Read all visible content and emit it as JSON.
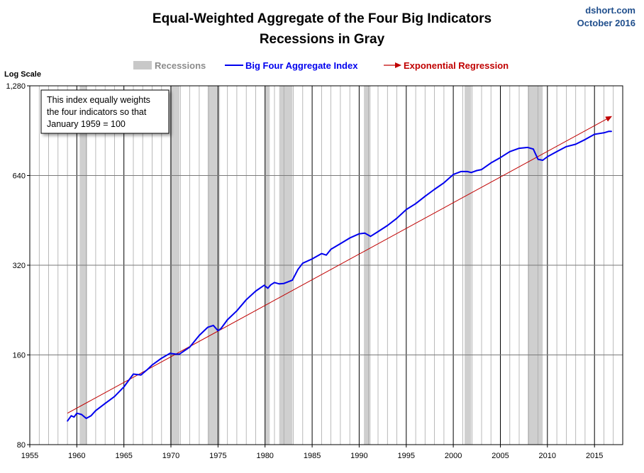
{
  "chart_data": {
    "type": "line",
    "title": "Equal-Weighted Aggregate of the Four Big Indicators",
    "subtitle": "Recessions in Gray",
    "source_label": "dshort.com",
    "date_label": "October 2016",
    "y_scale_label": "Log Scale",
    "y_scale": "log",
    "ylim": [
      80,
      1280
    ],
    "y_ticks": [
      80,
      160,
      320,
      640,
      1280
    ],
    "y_tick_labels": [
      "80",
      "160",
      "320",
      "640",
      "1,280"
    ],
    "xlim": [
      1955,
      2018
    ],
    "x_ticks": [
      1955,
      1960,
      1965,
      1970,
      1975,
      1980,
      1985,
      1990,
      1995,
      2000,
      2005,
      2010,
      2015
    ],
    "x_tick_labels": [
      "1955",
      "1960",
      "1965",
      "1970",
      "1975",
      "1980",
      "1985",
      "1990",
      "1995",
      "2000",
      "2005",
      "2010",
      "2015"
    ],
    "grid": "vertical lines every year; horizontal lines at y ticks",
    "legend": {
      "placement": "top-center",
      "entries": [
        {
          "label": "Recessions",
          "kind": "band",
          "color": "#c8c8c8"
        },
        {
          "label": "Big Four Aggregate Index",
          "kind": "line",
          "color": "#0000ee"
        },
        {
          "label": "Exponential Regression",
          "kind": "arrow",
          "color": "#c00000"
        }
      ]
    },
    "annotation": [
      "This index equally weights",
      "the four indicators  so that",
      "January 1959 = 100"
    ],
    "recessions": [
      [
        1960.3,
        1961.1
      ],
      [
        1969.9,
        1970.9
      ],
      [
        1973.9,
        1975.2
      ],
      [
        1980.0,
        1980.5
      ],
      [
        1981.5,
        1982.9
      ],
      [
        1990.5,
        1991.2
      ],
      [
        2001.2,
        2001.9
      ],
      [
        2007.9,
        2009.5
      ]
    ],
    "series": [
      {
        "name": "Big Four Aggregate Index",
        "color": "#0000ee",
        "x": [
          1959.0,
          1959.4,
          1959.7,
          1960.0,
          1960.5,
          1961.0,
          1961.5,
          1962.0,
          1963.0,
          1964.0,
          1965.0,
          1966.0,
          1966.8,
          1967.5,
          1968.0,
          1969.0,
          1969.9,
          1970.5,
          1970.9,
          1972.0,
          1973.0,
          1973.9,
          1974.5,
          1975.0,
          1975.3,
          1976.0,
          1977.0,
          1978.0,
          1979.0,
          1979.9,
          1980.3,
          1980.6,
          1981.0,
          1981.5,
          1982.0,
          1982.9,
          1983.5,
          1984.0,
          1985.0,
          1986.0,
          1986.5,
          1987.0,
          1988.0,
          1989.0,
          1990.0,
          1990.6,
          1991.2,
          1992.0,
          1993.0,
          1994.0,
          1995.0,
          1996.0,
          1997.0,
          1998.0,
          1999.0,
          2000.0,
          2000.8,
          2001.5,
          2001.9,
          2002.5,
          2003.0,
          2004.0,
          2005.0,
          2006.0,
          2007.0,
          2007.9,
          2008.5,
          2009.0,
          2009.5,
          2010.0,
          2011.0,
          2012.0,
          2013.0,
          2014.0,
          2015.0,
          2015.5,
          2016.0,
          2016.5,
          2016.8
        ],
        "values": [
          96,
          100,
          99,
          102,
          101,
          98,
          100,
          104,
          110,
          116,
          125,
          138,
          137,
          143,
          148,
          156,
          162,
          161,
          161,
          170,
          186,
          198,
          201,
          193,
          196,
          210,
          225,
          245,
          262,
          274,
          268,
          275,
          280,
          277,
          278,
          285,
          310,
          325,
          336,
          350,
          346,
          362,
          378,
          395,
          408,
          410,
          400,
          415,
          435,
          460,
          492,
          515,
          545,
          575,
          605,
          645,
          660,
          660,
          655,
          665,
          670,
          705,
          735,
          770,
          790,
          795,
          785,
          725,
          720,
          740,
          770,
          800,
          815,
          845,
          880,
          885,
          890,
          900,
          900
        ]
      },
      {
        "name": "Exponential Regression",
        "color": "#c00000",
        "x": [
          1959.0,
          2016.8
        ],
        "values": [
          102,
          1010
        ]
      }
    ]
  }
}
